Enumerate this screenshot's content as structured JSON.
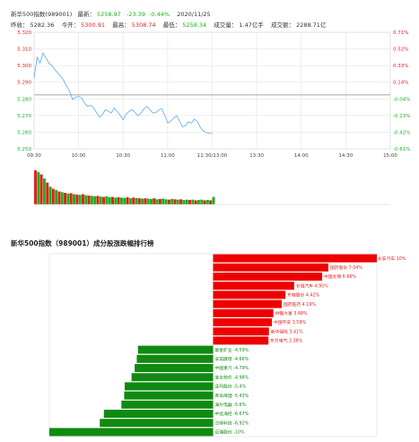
{
  "header": {
    "row1": {
      "index_name": "新华500指数(989001)",
      "latest_label": "最新：",
      "latest_value": "5258.97",
      "change": "-23.39",
      "change_pct": "-0.44%",
      "date": "2020/11/25"
    },
    "row2": {
      "prev_close_label": "昨收：",
      "prev_close_value": "5282.36",
      "open_label": "今开：",
      "open_value": "5300.91",
      "high_label": "最高：",
      "high_value": "5308.74",
      "low_label": "最低：",
      "low_value": "5258.34",
      "volume_label": "成交量：",
      "volume_value": "1.47亿手",
      "turnover_label": "成交额：",
      "turnover_value": "2288.71亿"
    }
  },
  "colors": {
    "up": "#e02020",
    "down": "#19b319",
    "price_line": "#5aaaf0",
    "prev_close_line": "#888888",
    "grid": "#e4e4e4"
  },
  "chart_data": [
    {
      "type": "line",
      "title": "",
      "x_ticks": [
        "09:30",
        "10:00",
        "10:30",
        "11:00",
        "11:30/13:00",
        "13:30",
        "14:00",
        "14:30",
        "15:00"
      ],
      "y_ticks": [
        "5.320",
        "5.310",
        "5.300",
        "5.290",
        "5.280",
        "5.270",
        "5.260",
        "5.250"
      ],
      "y_right_ticks": [
        "0.71%",
        "0.52%",
        "0.33%",
        "0.14%",
        "-0.04%",
        "-0.23%",
        "-0.42%",
        "-0.61%"
      ],
      "ylim": [
        5.25,
        5.32
      ],
      "prev_close": 5.28236,
      "grid": true,
      "series": [
        {
          "x": [
            0,
            2,
            4,
            6,
            8,
            10,
            12,
            14,
            16,
            18,
            20,
            22,
            24,
            26,
            28,
            30,
            32,
            34,
            36,
            38,
            40,
            42,
            44,
            46,
            48,
            50,
            52,
            54,
            56,
            58,
            60,
            62,
            64,
            66,
            68,
            70,
            72,
            74,
            76,
            78,
            80,
            82,
            84,
            86,
            88,
            90,
            92,
            94,
            96,
            98,
            100,
            102,
            104,
            106,
            108,
            110,
            112,
            114,
            116,
            118,
            120
          ],
          "y": [
            5.2925,
            5.305,
            5.3015,
            5.3075,
            5.3045,
            5.3015,
            5.3,
            5.2975,
            5.2955,
            5.2935,
            5.291,
            5.2875,
            5.2845,
            5.2795,
            5.281,
            5.2815,
            5.2805,
            5.2775,
            5.2755,
            5.2762,
            5.2748,
            5.2718,
            5.269,
            5.2705,
            5.2735,
            5.2725,
            5.2715,
            5.2745,
            5.2725,
            5.2702,
            5.2675,
            5.2708,
            5.2725,
            5.2735,
            5.2718,
            5.2698,
            5.2715,
            5.274,
            5.2755,
            5.2735,
            5.2715,
            5.2718,
            5.2732,
            5.2742,
            5.2702,
            5.2655,
            5.2665,
            5.2685,
            5.2698,
            5.2668,
            5.2632,
            5.264,
            5.2662,
            5.2655,
            5.2678,
            5.2665,
            5.2628,
            5.2608,
            5.2598,
            5.2595,
            5.259
          ]
        }
      ]
    },
    {
      "type": "bar",
      "title": "",
      "x": [
        0,
        2,
        4,
        6,
        8,
        10,
        12,
        14,
        16,
        18,
        20,
        22,
        24,
        26,
        28,
        30,
        32,
        34,
        36,
        38,
        40,
        42,
        44,
        46,
        48,
        50,
        52,
        54,
        56,
        58,
        60,
        62,
        64,
        66,
        68,
        70,
        72,
        74,
        76,
        78,
        80,
        82,
        84,
        86,
        88,
        90,
        92,
        94,
        96,
        98,
        100,
        102,
        104,
        106,
        108,
        110,
        112,
        114,
        116,
        118,
        120
      ],
      "values": [
        100,
        95,
        88,
        76,
        64,
        52,
        46,
        42,
        38,
        36,
        34,
        32,
        33,
        30,
        29,
        28,
        30,
        27,
        26,
        25,
        24,
        25,
        23,
        22,
        24,
        21,
        22,
        20,
        21,
        20,
        19,
        21,
        18,
        20,
        19,
        18,
        17,
        18,
        17,
        16,
        18,
        15,
        16,
        17,
        15,
        14,
        16,
        15,
        14,
        15,
        13,
        14,
        13,
        14,
        12,
        13,
        14,
        12,
        13,
        12,
        22
      ],
      "up": [
        1,
        0,
        1,
        0,
        1,
        0,
        1,
        0,
        1,
        0,
        1,
        0,
        1,
        0,
        1,
        0,
        1,
        0,
        1,
        0,
        0,
        1,
        0,
        1,
        0,
        0,
        1,
        0,
        1,
        0,
        0,
        1,
        0,
        1,
        0,
        1,
        0,
        1,
        0,
        0,
        1,
        0,
        1,
        0,
        0,
        1,
        0,
        1,
        0,
        1,
        0,
        0,
        1,
        0,
        1,
        0,
        0,
        1,
        0,
        1,
        0
      ]
    },
    {
      "type": "bar",
      "orientation": "horizontal",
      "title": "新华500指数（989001）成分股涨跌幅排行榜",
      "xlim": [
        -10,
        10
      ],
      "categories": [
        "长安汽车",
        "国药股份",
        "中国太保",
        "长城汽车",
        "东鞋股份",
        "国药医药",
        "供暖大富",
        "中国平安",
        "新华保险",
        "东方电气",
        "紫金矿业",
        "安琪酵母",
        "中国重汽",
        "宝信软件",
        "泽玛股份",
        "青岛啤酒",
        "海尔电器",
        "中远海控",
        "汉得科技",
        "迈瑞股份"
      ],
      "values": [
        10,
        7.04,
        6.66,
        4.95,
        4.42,
        4.19,
        3.68,
        3.59,
        3.41,
        3.38,
        -4.59,
        -4.66,
        -4.79,
        -4.98,
        -5.4,
        -5.43,
        -5.6,
        -6.67,
        -6.92,
        -10
      ],
      "labels": [
        "长安汽车 10%",
        "国药股份 7.04%",
        "中国太保 6.66%",
        "长城汽车 4.95%",
        "东鞋股份 4.42%",
        "国药医药 4.19%",
        "供暖大富 3.68%",
        "中国平安 3.59%",
        "新华保险 3.41%",
        "东方电气 3.38%",
        "紫金矿业 -4.59%",
        "安琪酵母 -4.66%",
        "中国重汽 -4.79%",
        "宝信软件 -4.98%",
        "泽玛股份 -5.4%",
        "青岛啤酒 -5.43%",
        "海尔电器 -5.6%",
        "中远海控 -6.67%",
        "汉得科技 -6.92%",
        "迈瑞股份 -10%"
      ]
    }
  ]
}
